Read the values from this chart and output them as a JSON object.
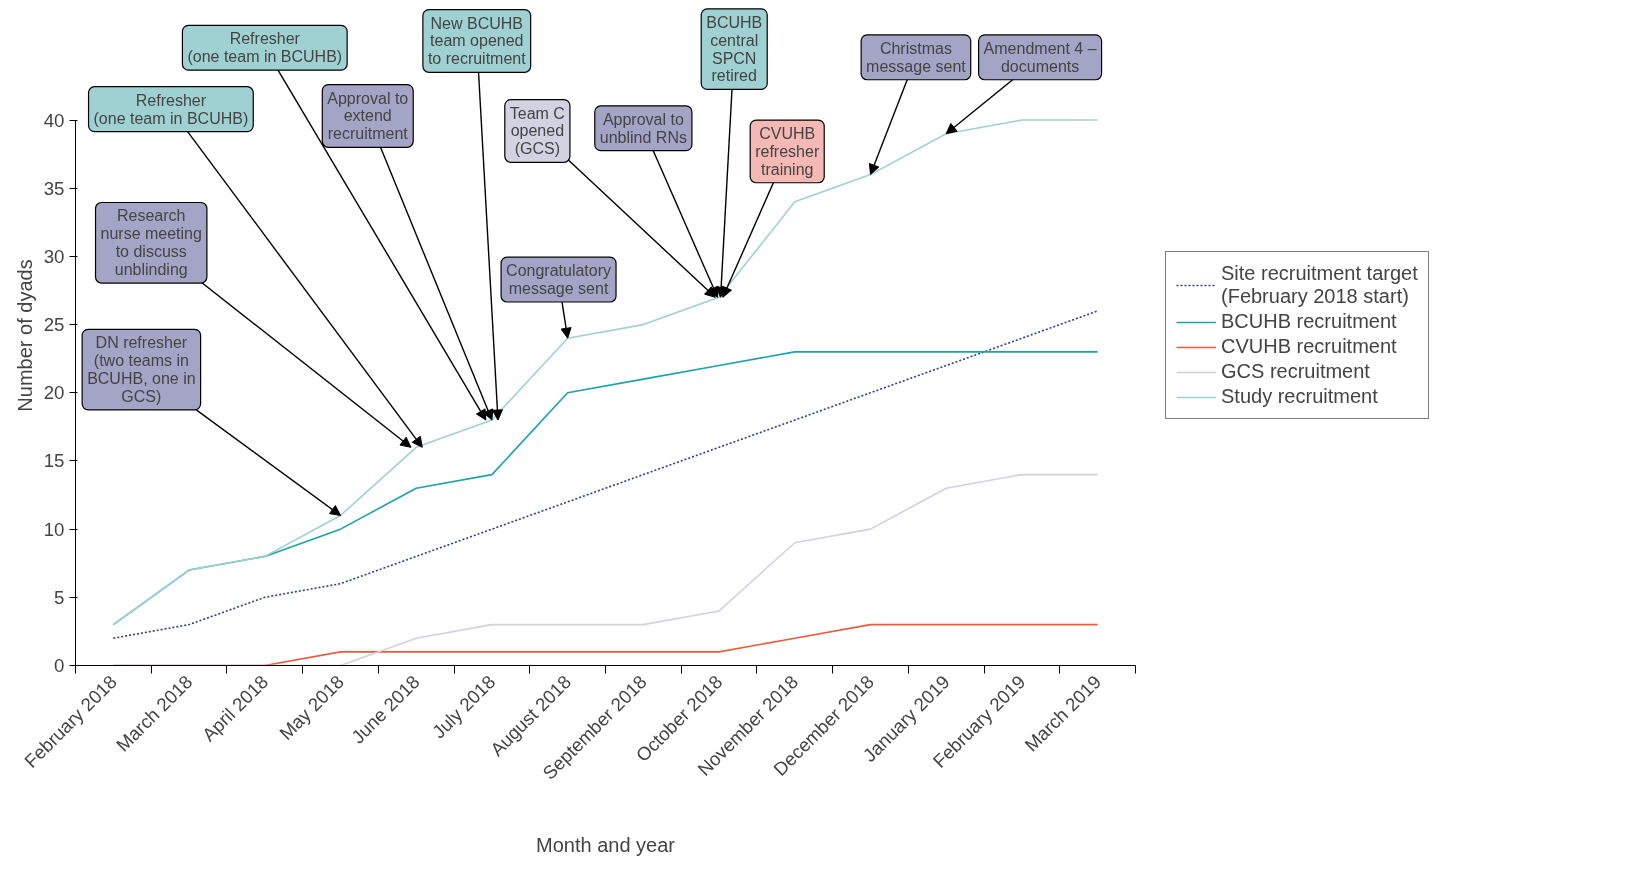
{
  "chart_data": {
    "type": "line",
    "xlabel": "Month and year",
    "ylabel": "Number of dyads",
    "categories": [
      "February 2018",
      "March 2018",
      "April 2018",
      "May 2018",
      "June 2018",
      "July 2018",
      "August 2018",
      "September 2018",
      "October 2018",
      "November 2018",
      "December 2018",
      "January 2019",
      "February 2019",
      "March 2019"
    ],
    "series": [
      {
        "name": "Site recruitment target\n(February 2018 start)",
        "color": "#2a3f8f",
        "line_style": "dotted",
        "values": [
          2,
          3,
          5,
          6,
          8,
          10,
          12,
          14,
          16,
          18,
          20,
          22,
          24,
          26
        ]
      },
      {
        "name": "BCUHB recruitment",
        "color": "#1aa3a8",
        "values": [
          3,
          7,
          8,
          10,
          13,
          14,
          20,
          21,
          22,
          23,
          23,
          23,
          23,
          23
        ]
      },
      {
        "name": "CVUHB recruitment",
        "color": "#ef5a3c",
        "values": [
          0,
          0,
          0,
          1,
          1,
          1,
          1,
          1,
          1,
          2,
          3,
          3,
          3,
          3
        ]
      },
      {
        "name": "GCS recruitment",
        "color": "#d3d0e4",
        "values": [
          0,
          0,
          0,
          0,
          2,
          3,
          3,
          3,
          4,
          9,
          10,
          13,
          14,
          14
        ]
      },
      {
        "name": "Study recruitment",
        "color": "#9fd0d4",
        "values": [
          3,
          7,
          8,
          11,
          16,
          18,
          24,
          25,
          27,
          34,
          36,
          39,
          40,
          40
        ]
      }
    ],
    "ylim": [
      0,
      40
    ],
    "yticks": [
      0,
      5,
      10,
      15,
      20,
      25,
      30,
      35,
      40
    ],
    "grid": false,
    "legend": "right",
    "marker": "none",
    "line_style": "solid",
    "annotations": [
      {
        "text": "DN refresher\n(two teams in\nBCUHB, one in\nGCS)",
        "x": "May 2018",
        "y": 11
      },
      {
        "text": "Research\nnurse meeting\nto discuss\nunblinding",
        "x": "June 2018",
        "y": 16
      },
      {
        "text": "Refresher\n(one team in BCUHB)",
        "x": "June 2018",
        "y": 16
      },
      {
        "text": "Refresher\n(one team in BCUHB)",
        "x": "July 2018",
        "y": 18
      },
      {
        "text": "Approval to\nextend\nrecruitment",
        "x": "July 2018",
        "y": 18
      },
      {
        "text": "New BCUHB\nteam opened\nto recruitment",
        "x": "July 2018",
        "y": 18
      },
      {
        "text": "Team C\nopened\n(GCS)",
        "x": "October 2018",
        "y": 27
      },
      {
        "text": "Approval to\nunblind RNs",
        "x": "October 2018",
        "y": 27
      },
      {
        "text": "BCUHB\ncentral\nSPCN\nretired",
        "x": "October 2018",
        "y": 27
      },
      {
        "text": "CVUHB\nrefresher\ntraining",
        "x": "October 2018",
        "y": 27
      },
      {
        "text": "Congratulatory\nmessage sent",
        "x": "August 2018",
        "y": 24
      },
      {
        "text": "Christmas\nmessage sent",
        "x": "December 2018",
        "y": 36
      },
      {
        "text": "Amendment 4 –\ndocuments",
        "x": "January 2019",
        "y": 39
      }
    ]
  }
}
